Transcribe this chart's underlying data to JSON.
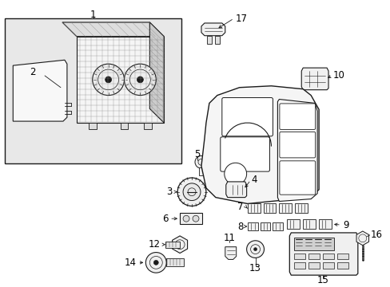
{
  "bg_color": "#ffffff",
  "line_color": "#1a1a1a",
  "font_size": 8.5,
  "box_bg": "#e8e8e8",
  "label_color": "#000000"
}
